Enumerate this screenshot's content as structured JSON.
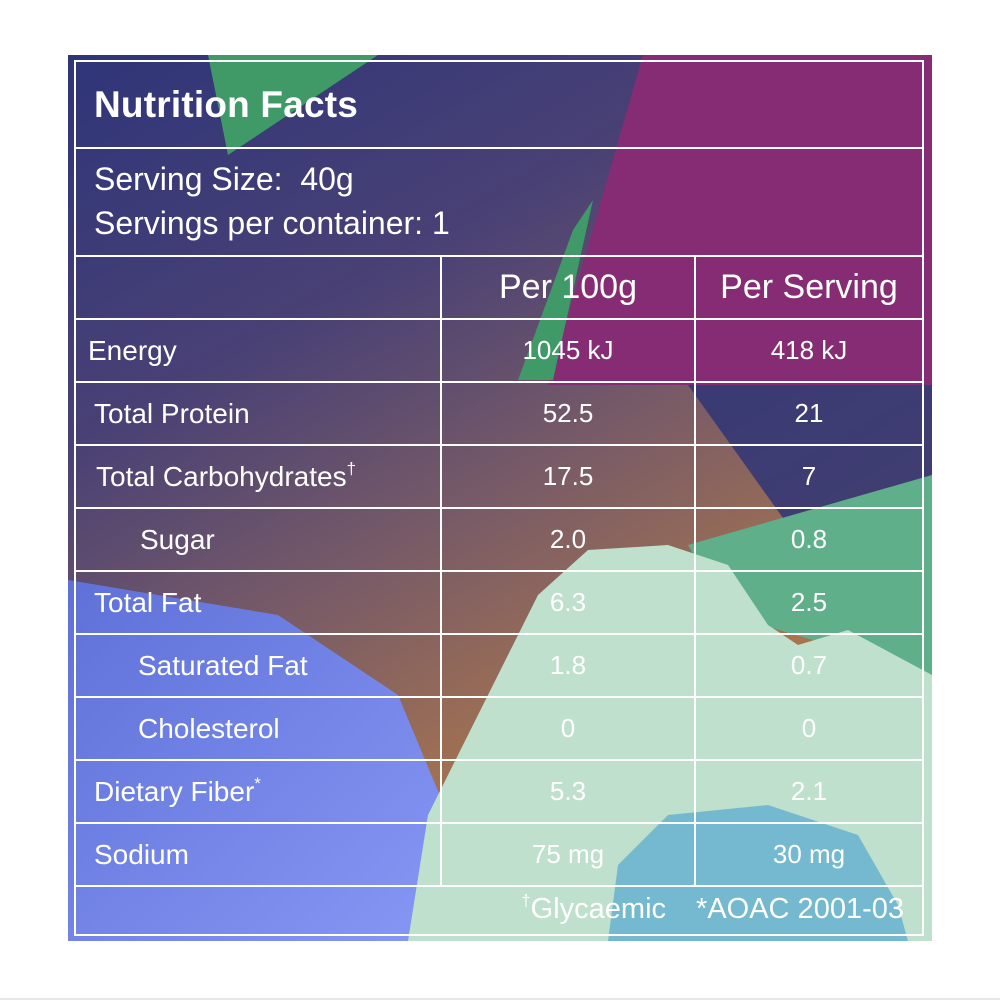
{
  "title": "Nutrition Facts",
  "serving": {
    "size_label": "Serving Size:",
    "size_value": "40g",
    "count_label": "Servings per container:",
    "count_value": "1"
  },
  "columns": {
    "per100": "Per 100g",
    "perServing": "Per Serving"
  },
  "rows": [
    {
      "label": "Energy",
      "per100": "1045 kJ",
      "perServing": "418 kJ"
    },
    {
      "label": "Total Protein",
      "per100": "52.5",
      "perServing": "21"
    },
    {
      "label": "Total Carbohydrates",
      "mark": "†",
      "per100": "17.5",
      "perServing": "7"
    },
    {
      "label": "Sugar",
      "per100": "2.0",
      "perServing": "0.8"
    },
    {
      "label": "Total Fat",
      "per100": "6.3",
      "perServing": "2.5"
    },
    {
      "label": "Saturated Fat",
      "per100": "1.8",
      "perServing": "0.7"
    },
    {
      "label": "Cholesterol",
      "per100": "0",
      "perServing": "0"
    },
    {
      "label": "Dietary Fiber",
      "mark": "*",
      "per100": "5.3",
      "perServing": "2.1"
    },
    {
      "label": "Sodium",
      "per100": "75 mg",
      "perServing": "30 mg"
    }
  ],
  "footnotes": {
    "glycaemic_mark": "†",
    "glycaemic": "Glycaemic",
    "aoac": "*AOAC 2001-03"
  },
  "colors": {
    "navy": "#2f3577",
    "purple": "#852c74",
    "green": "#3f9a68",
    "brown": "#8c6a5c",
    "blue": "#6f82f0",
    "mint": "#bfe0cc",
    "teal": "#74b9cf"
  }
}
